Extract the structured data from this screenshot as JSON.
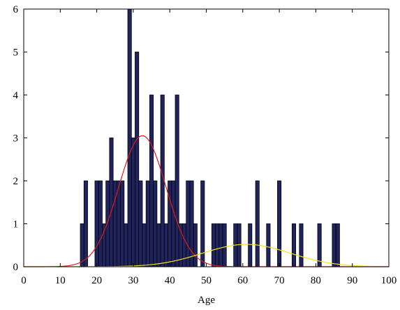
{
  "chart_data": {
    "type": "bar",
    "xlabel": "Age",
    "ylabel": "",
    "xlim": [
      0,
      100
    ],
    "ylim": [
      0,
      6
    ],
    "xticks": [
      0,
      10,
      20,
      30,
      40,
      50,
      60,
      70,
      80,
      90,
      100
    ],
    "yticks": [
      0,
      1,
      2,
      3,
      4,
      5,
      6
    ],
    "grid": false,
    "bin_width": 1,
    "bar_color": "#20245e",
    "bars": [
      {
        "x": 16,
        "y": 1
      },
      {
        "x": 17,
        "y": 2
      },
      {
        "x": 20,
        "y": 2
      },
      {
        "x": 21,
        "y": 2
      },
      {
        "x": 22,
        "y": 1
      },
      {
        "x": 23,
        "y": 2
      },
      {
        "x": 24,
        "y": 3
      },
      {
        "x": 25,
        "y": 2
      },
      {
        "x": 26,
        "y": 2
      },
      {
        "x": 27,
        "y": 2
      },
      {
        "x": 28,
        "y": 1
      },
      {
        "x": 29,
        "y": 6
      },
      {
        "x": 30,
        "y": 3
      },
      {
        "x": 31,
        "y": 5
      },
      {
        "x": 32,
        "y": 2
      },
      {
        "x": 33,
        "y": 1
      },
      {
        "x": 34,
        "y": 2
      },
      {
        "x": 35,
        "y": 4
      },
      {
        "x": 36,
        "y": 2
      },
      {
        "x": 37,
        "y": 1
      },
      {
        "x": 38,
        "y": 4
      },
      {
        "x": 39,
        "y": 1
      },
      {
        "x": 40,
        "y": 2
      },
      {
        "x": 41,
        "y": 2
      },
      {
        "x": 42,
        "y": 4
      },
      {
        "x": 43,
        "y": 1
      },
      {
        "x": 44,
        "y": 1
      },
      {
        "x": 45,
        "y": 2
      },
      {
        "x": 46,
        "y": 2
      },
      {
        "x": 47,
        "y": 1
      },
      {
        "x": 49,
        "y": 2
      },
      {
        "x": 52,
        "y": 1
      },
      {
        "x": 53,
        "y": 1
      },
      {
        "x": 54,
        "y": 1
      },
      {
        "x": 55,
        "y": 1
      },
      {
        "x": 58,
        "y": 1
      },
      {
        "x": 59,
        "y": 1
      },
      {
        "x": 62,
        "y": 1
      },
      {
        "x": 64,
        "y": 2
      },
      {
        "x": 67,
        "y": 1
      },
      {
        "x": 70,
        "y": 2
      },
      {
        "x": 74,
        "y": 1
      },
      {
        "x": 76,
        "y": 1
      },
      {
        "x": 81,
        "y": 1
      },
      {
        "x": 85,
        "y": 1
      },
      {
        "x": 86,
        "y": 1
      }
    ],
    "series": [
      {
        "type": "curve",
        "color": "#e8141e",
        "mean": 32.5,
        "sd": 6.5,
        "peak": 3.05
      },
      {
        "type": "curve",
        "color": "#f2e21a",
        "mean": 61,
        "sd": 12,
        "peak": 0.52
      }
    ]
  }
}
